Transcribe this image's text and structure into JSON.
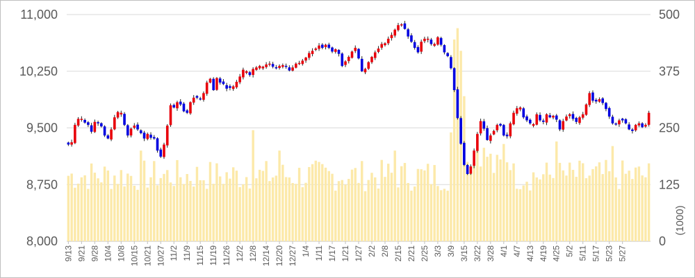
{
  "chart_data": {
    "type": "candlestick",
    "x_tick_labels": [
      "9/13",
      "9/21",
      "9/28",
      "10/4",
      "10/8",
      "10/15",
      "10/21",
      "10/27",
      "11/2",
      "11/9",
      "11/15",
      "11/19",
      "11/26",
      "12/2",
      "12/8",
      "12/14",
      "12/20",
      "12/27",
      "1/4",
      "1/11",
      "1/17",
      "1/21",
      "1/27",
      "2/2",
      "2/8",
      "2/15",
      "2/21",
      "2/25",
      "3/3",
      "3/9",
      "3/15",
      "3/22",
      "3/28",
      "4/1",
      "4/7",
      "4/13",
      "4/19",
      "4/25",
      "5/2",
      "5/11",
      "5/17",
      "5/23",
      "5/27"
    ],
    "y_left": {
      "ticks": [
        "8,000",
        "8,750",
        "9,500",
        "10,250",
        "11,000"
      ],
      "min": 8000,
      "max": 11000
    },
    "y_right": {
      "ticks": [
        "0",
        "125",
        "250",
        "375",
        "500"
      ],
      "min": 0,
      "max": 500,
      "label": "(1000)"
    },
    "grid": true,
    "colors": {
      "up": "#e8000b",
      "down": "#0000e0",
      "volume": "#fce9a9",
      "grid": "#d9d9d9",
      "axis": "#bfbfbf"
    },
    "days_per_label": 4,
    "ohlc_close": [
      9280,
      9310,
      9540,
      9620,
      9620,
      9570,
      9540,
      9450,
      9580,
      9560,
      9520,
      9400,
      9360,
      9480,
      9640,
      9710,
      9700,
      9540,
      9400,
      9490,
      9530,
      9480,
      9430,
      9360,
      9420,
      9370,
      9360,
      9200,
      9120,
      9280,
      9530,
      9800,
      9770,
      9840,
      9810,
      9720,
      9700,
      9840,
      9900,
      9900,
      9880,
      9960,
      10100,
      10150,
      10000,
      10160,
      10100,
      10080,
      10020,
      10030,
      10050,
      10110,
      10180,
      10270,
      10250,
      10200,
      10280,
      10300,
      10320,
      10310,
      10340,
      10350,
      10310,
      10290,
      10320,
      10330,
      10310,
      10260,
      10300,
      10350,
      10360,
      10390,
      10430,
      10490,
      10520,
      10550,
      10590,
      10560,
      10600,
      10560,
      10510,
      10540,
      10480,
      10320,
      10380,
      10440,
      10510,
      10560,
      10420,
      10250,
      10280,
      10370,
      10440,
      10500,
      10550,
      10610,
      10620,
      10680,
      10730,
      10800,
      10860,
      10870,
      10810,
      10710,
      10640,
      10560,
      10500,
      10640,
      10680,
      10680,
      10610,
      10610,
      10700,
      10600,
      10500,
      10450,
      10290,
      10000,
      9630,
      9290,
      9010,
      8890,
      8990,
      9200,
      9420,
      9590,
      9490,
      9340,
      9400,
      9460,
      9540,
      9530,
      9400,
      9390,
      9560,
      9700,
      9760,
      9770,
      9640,
      9600,
      9560,
      9550,
      9680,
      9600,
      9580,
      9680,
      9640,
      9660,
      9610,
      9480,
      9590,
      9650,
      9680,
      9620,
      9580,
      9640,
      9680,
      9810,
      9960,
      9860,
      9850,
      9880,
      9830,
      9750,
      9650,
      9560,
      9550,
      9600,
      9600,
      9560,
      9480,
      9460,
      9540,
      9560,
      9510,
      9540,
      9700
    ]
  }
}
